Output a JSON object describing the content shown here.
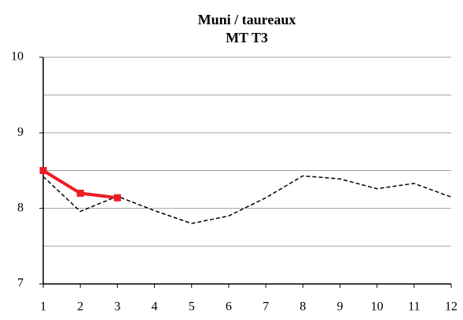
{
  "chart_data": {
    "type": "line",
    "title": [
      "Muni  / taureaux",
      "MT T3"
    ],
    "x": [
      1,
      2,
      3,
      4,
      5,
      6,
      7,
      8,
      9,
      10,
      11,
      12
    ],
    "xlim": [
      1,
      12
    ],
    "xticks": [
      1,
      2,
      3,
      4,
      5,
      6,
      7,
      8,
      9,
      10,
      11,
      12
    ],
    "ylim": [
      7,
      10
    ],
    "yticks": [
      7,
      8,
      9,
      10
    ],
    "minor_yticks": [
      7.5,
      8.5,
      9.5
    ],
    "grid": true,
    "series": [
      {
        "color": "#000000",
        "dash": true,
        "values": [
          8.42,
          7.96,
          8.16,
          7.97,
          7.8,
          7.9,
          8.14,
          8.43,
          8.39,
          8.26,
          8.33,
          8.15
        ]
      },
      {
        "color": "#ee1c25",
        "dash": false,
        "values": [
          8.5,
          8.2,
          8.14,
          null,
          null,
          null,
          null,
          null,
          null,
          null,
          null,
          null
        ]
      }
    ]
  }
}
